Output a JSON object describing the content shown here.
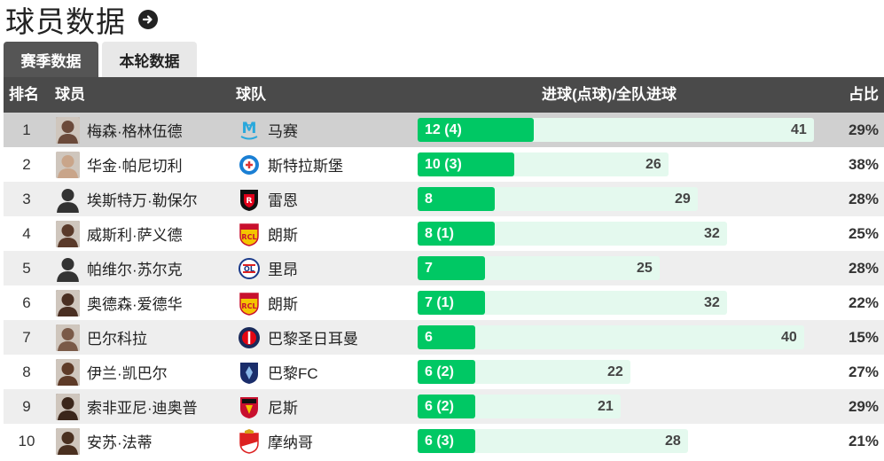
{
  "page": {
    "title": "球员数据",
    "title_icon": "arrow-right-circle-icon"
  },
  "tabs": [
    {
      "label": "赛季数据",
      "active": true
    },
    {
      "label": "本轮数据",
      "active": false
    }
  ],
  "table": {
    "headers": {
      "rank": "排名",
      "player": "球员",
      "team": "球队",
      "goals": "进球(点球)/全队进球",
      "pct": "占比"
    },
    "scale_max": 41,
    "rows": [
      {
        "rank": "1",
        "player": "梅森·格林伍德",
        "team": "马赛",
        "team_logo": "marseille-logo-icon",
        "goals": "12 (4)",
        "goals_value": 12,
        "team_goals": "41",
        "team_goals_value": 41,
        "pct": "29%"
      },
      {
        "rank": "2",
        "player": "华金·帕尼切利",
        "team": "斯特拉斯堡",
        "team_logo": "strasbourg-logo-icon",
        "goals": "10 (3)",
        "goals_value": 10,
        "team_goals": "26",
        "team_goals_value": 26,
        "pct": "38%"
      },
      {
        "rank": "3",
        "player": "埃斯特万·勒保尔",
        "team": "雷恩",
        "team_logo": "rennes-logo-icon",
        "goals": "8",
        "goals_value": 8,
        "team_goals": "29",
        "team_goals_value": 29,
        "pct": "28%"
      },
      {
        "rank": "4",
        "player": "威斯利·萨义德",
        "team": "朗斯",
        "team_logo": "lens-logo-icon",
        "goals": "8 (1)",
        "goals_value": 8,
        "team_goals": "32",
        "team_goals_value": 32,
        "pct": "25%"
      },
      {
        "rank": "5",
        "player": "帕维尔·苏尔克",
        "team": "里昂",
        "team_logo": "lyon-logo-icon",
        "goals": "7",
        "goals_value": 7,
        "team_goals": "25",
        "team_goals_value": 25,
        "pct": "28%"
      },
      {
        "rank": "6",
        "player": "奥德森·爱德华",
        "team": "朗斯",
        "team_logo": "lens-logo-icon",
        "goals": "7 (1)",
        "goals_value": 7,
        "team_goals": "32",
        "team_goals_value": 32,
        "pct": "22%"
      },
      {
        "rank": "7",
        "player": "巴尔科拉",
        "team": "巴黎圣日耳曼",
        "team_logo": "psg-logo-icon",
        "goals": "6",
        "goals_value": 6,
        "team_goals": "40",
        "team_goals_value": 40,
        "pct": "15%"
      },
      {
        "rank": "8",
        "player": "伊兰·凯巴尔",
        "team": "巴黎FC",
        "team_logo": "paris-fc-logo-icon",
        "goals": "6 (2)",
        "goals_value": 6,
        "team_goals": "22",
        "team_goals_value": 22,
        "pct": "27%"
      },
      {
        "rank": "9",
        "player": "索非亚尼·迪奥普",
        "team": "尼斯",
        "team_logo": "nice-logo-icon",
        "goals": "6 (2)",
        "goals_value": 6,
        "team_goals": "21",
        "team_goals_value": 21,
        "pct": "29%"
      },
      {
        "rank": "10",
        "player": "安苏·法蒂",
        "team": "摩纳哥",
        "team_logo": "monaco-logo-icon",
        "goals": "6 (3)",
        "goals_value": 6,
        "team_goals": "28",
        "team_goals_value": 28,
        "pct": "21%"
      }
    ]
  },
  "colors": {
    "header_bg": "#4a4a4a",
    "tab_active": "#555555",
    "bar_goals": "#00c864",
    "bar_team": "#e4f9ee"
  }
}
